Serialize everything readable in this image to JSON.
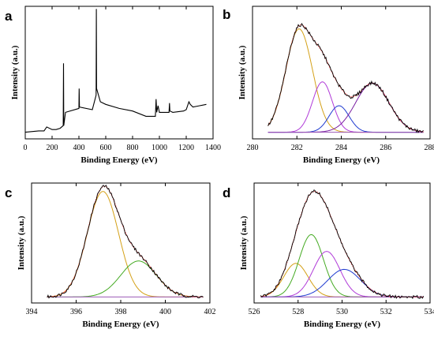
{
  "chart_data": [
    {
      "panel": "a",
      "type": "line",
      "xlabel": "Binding Energy (eV)",
      "ylabel": "Intensity (a.u.)",
      "xlim": [
        0,
        1400
      ],
      "ylim": [
        0,
        1
      ],
      "xticks": [
        0,
        200,
        400,
        600,
        800,
        1000,
        1200,
        1400
      ],
      "grid": false,
      "series": [
        {
          "color": "#000000",
          "x": [
            0,
            100,
            140,
            160,
            200,
            230,
            260,
            283,
            285,
            287,
            300,
            400,
            402,
            404,
            500,
            528,
            530,
            532,
            560,
            600,
            700,
            800,
            900,
            970,
            975,
            980,
            990,
            1000,
            1072,
            1075,
            1078,
            1100,
            1180,
            1200,
            1220,
            1230,
            1250,
            1300,
            1350
          ],
          "y": [
            0.05,
            0.06,
            0.06,
            0.09,
            0.07,
            0.07,
            0.08,
            0.1,
            0.57,
            0.1,
            0.2,
            0.23,
            0.38,
            0.24,
            0.22,
            0.33,
            0.98,
            0.38,
            0.28,
            0.26,
            0.23,
            0.21,
            0.17,
            0.17,
            0.3,
            0.2,
            0.25,
            0.2,
            0.2,
            0.27,
            0.21,
            0.2,
            0.21,
            0.22,
            0.28,
            0.26,
            0.24,
            0.25,
            0.26
          ]
        }
      ]
    },
    {
      "panel": "b",
      "type": "line",
      "xlabel": "Binding Energy (eV)",
      "ylabel": "Intensity (a.u.)",
      "xlim": [
        280,
        288
      ],
      "ylim": [
        0,
        1
      ],
      "xticks": [
        280,
        282,
        284,
        286,
        288
      ],
      "grid": false,
      "baseline": 0.05,
      "data_range": [
        280.7,
        287.7
      ],
      "peaks": [
        {
          "center": 282.1,
          "amplitude": 0.78,
          "sigma": 0.6,
          "color": "#d4a017"
        },
        {
          "center": 283.15,
          "amplitude": 0.38,
          "sigma": 0.45,
          "color": "#b03ad8"
        },
        {
          "center": 283.9,
          "amplitude": 0.2,
          "sigma": 0.45,
          "color": "#1f3bd0"
        },
        {
          "center": 285.4,
          "amplitude": 0.37,
          "sigma": 0.75,
          "color": "#7a1fa2"
        }
      ],
      "envelope_color": "#ff4d4d",
      "data_color": "#000000"
    },
    {
      "panel": "c",
      "type": "line",
      "xlabel": "Binding Energy (eV)",
      "ylabel": "Intensity (a.u.)",
      "xlim": [
        394,
        402
      ],
      "ylim": [
        0,
        1
      ],
      "xticks": [
        394,
        396,
        398,
        400,
        402
      ],
      "grid": false,
      "baseline": 0.05,
      "data_range": [
        394.7,
        401.7
      ],
      "peaks": [
        {
          "center": 397.2,
          "amplitude": 0.88,
          "sigma": 0.7,
          "color": "#d4a017"
        },
        {
          "center": 398.8,
          "amplitude": 0.3,
          "sigma": 0.8,
          "color": "#44aa22"
        }
      ],
      "envelope_color": "#ff4d4d",
      "data_color": "#000000"
    },
    {
      "panel": "d",
      "type": "line",
      "xlabel": "Binding Energy (eV)",
      "ylabel": "Intensity (a.u.)",
      "xlim": [
        526,
        534
      ],
      "ylim": [
        0,
        1
      ],
      "xticks": [
        526,
        528,
        530,
        532,
        534
      ],
      "grid": false,
      "baseline": 0.05,
      "data_range": [
        526.3,
        533.7
      ],
      "peaks": [
        {
          "center": 527.9,
          "amplitude": 0.28,
          "sigma": 0.55,
          "color": "#d4a017"
        },
        {
          "center": 528.6,
          "amplitude": 0.52,
          "sigma": 0.55,
          "color": "#44aa22"
        },
        {
          "center": 529.3,
          "amplitude": 0.38,
          "sigma": 0.6,
          "color": "#b03ad8"
        },
        {
          "center": 530.1,
          "amplitude": 0.23,
          "sigma": 0.75,
          "color": "#1f3bd0"
        }
      ],
      "envelope_color": "#ff4d4d",
      "data_color": "#000000"
    }
  ]
}
